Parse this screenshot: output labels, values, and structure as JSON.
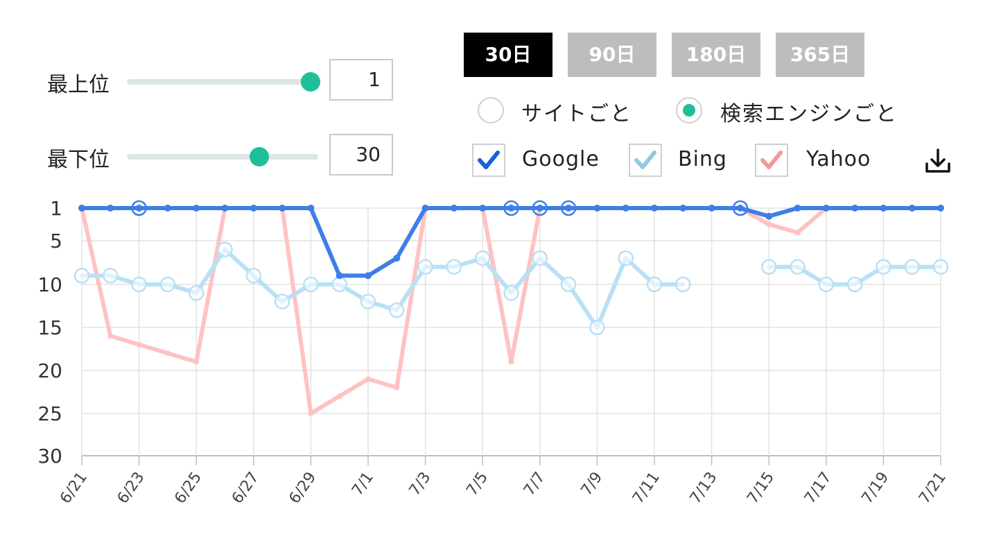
{
  "controls": {
    "top_label": "最上位",
    "top_value": "1",
    "top_slider_fraction": 1.0,
    "bottom_label": "最下位",
    "bottom_value": "30",
    "bottom_slider_fraction": 0.7
  },
  "range_buttons": [
    {
      "label": "30日",
      "active": true
    },
    {
      "label": "90日",
      "active": false
    },
    {
      "label": "180日",
      "active": false
    },
    {
      "label": "365日",
      "active": false
    }
  ],
  "view_options": [
    {
      "label": "サイトごと",
      "selected": false
    },
    {
      "label": "検索エンジンごと",
      "selected": true
    }
  ],
  "engines": [
    {
      "label": "Google",
      "checked": true,
      "color": "#2f6fe0"
    },
    {
      "label": "Bing",
      "checked": true,
      "color": "#8fcbe0"
    },
    {
      "label": "Yahoo",
      "checked": true,
      "color": "#f29a9a"
    }
  ],
  "download_icon": "download-icon",
  "chart_data": {
    "type": "line",
    "y_reversed": true,
    "ylim": [
      1,
      30
    ],
    "yticks": [
      1,
      5,
      10,
      15,
      20,
      25,
      30
    ],
    "x": [
      "6/21",
      "6/22",
      "6/23",
      "6/24",
      "6/25",
      "6/26",
      "6/27",
      "6/28",
      "6/29",
      "6/30",
      "7/1",
      "7/2",
      "7/3",
      "7/4",
      "7/5",
      "7/6",
      "7/7",
      "7/8",
      "7/9",
      "7/10",
      "7/11",
      "7/12",
      "7/13",
      "7/14",
      "7/15",
      "7/16",
      "7/17",
      "7/18",
      "7/19",
      "7/20",
      "7/21"
    ],
    "x_tick_labels": [
      "6/21",
      "6/23",
      "6/25",
      "6/27",
      "6/29",
      "7/1",
      "7/3",
      "7/5",
      "7/7",
      "7/9",
      "7/11",
      "7/13",
      "7/15",
      "7/17",
      "7/19",
      "7/21"
    ],
    "grid": true,
    "series": [
      {
        "name": "Yahoo",
        "color": "#ffc2c2",
        "values": [
          1,
          16,
          17,
          18,
          19,
          1,
          1,
          1,
          25,
          23,
          21,
          22,
          1,
          1,
          1,
          19,
          1,
          1,
          1,
          1,
          1,
          1,
          1,
          1,
          3,
          4,
          1,
          1,
          1,
          1,
          1
        ]
      },
      {
        "name": "Bing",
        "color": "#b9e0f5",
        "values": [
          9,
          9,
          10,
          10,
          11,
          6,
          9,
          12,
          10,
          10,
          12,
          13,
          8,
          8,
          7,
          11,
          7,
          10,
          15,
          7,
          10,
          10,
          null,
          null,
          8,
          8,
          10,
          10,
          8,
          8,
          8
        ]
      },
      {
        "name": "Google",
        "color": "#3e7ee6",
        "values": [
          1,
          1,
          1,
          1,
          1,
          1,
          1,
          1,
          1,
          9,
          9,
          7,
          1,
          1,
          1,
          1,
          1,
          1,
          1,
          1,
          1,
          1,
          1,
          1,
          2,
          1,
          1,
          1,
          1,
          1,
          1
        ],
        "circled_indices": [
          2,
          15,
          16,
          17,
          23
        ]
      }
    ]
  }
}
